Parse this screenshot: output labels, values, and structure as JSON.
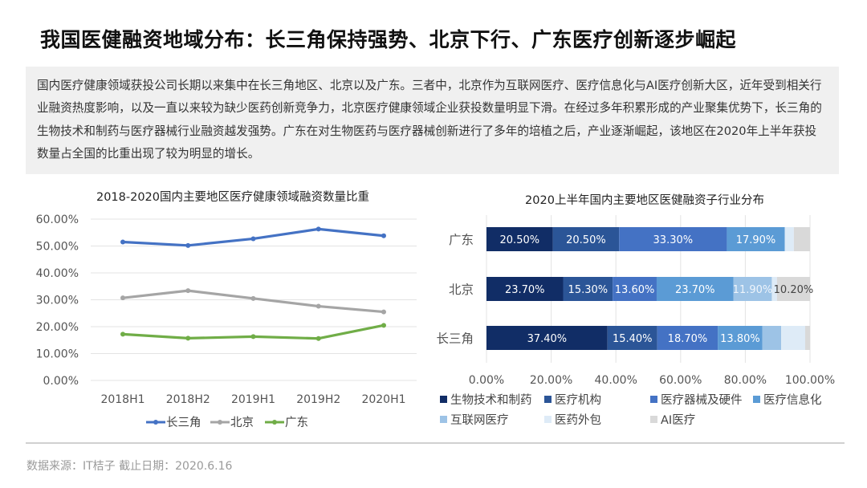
{
  "header": {
    "title": "我国医健融资地域分布：长三角保持强势、北京下行、广东医疗创新逐步崛起"
  },
  "summary": "国内医疗健康领域获投公司长期以来集中在长三角地区、北京以及广东。三者中，北京作为互联网医疗、医疗信息化与AI医疗创新大区，近年受到相关行业融资热度影响，以及一直以来较为缺少医药创新竞争力，北京医疗健康领域企业获投数量明显下滑。在经过多年积累形成的产业聚集优势下，长三角的生物技术和制药与医疗器械行业融资越发强势。广东在对生物医药与医疗器械创新进行了多年的培植之后，产业逐渐崛起，该地区在2020年上半年获投数量占全国的比重出现了较为明显的增长。",
  "footer": {
    "source": "数据来源：IT桔子  截止日期：2020.6.16"
  },
  "chart_data": [
    {
      "type": "line",
      "title": "2018-2020国内主要地区医疗健康领域融资数量比重",
      "categories": [
        "2018H1",
        "2018H2",
        "2019H1",
        "2019H2",
        "2020H1"
      ],
      "ylim": [
        0,
        60
      ],
      "yticks": [
        "0.00%",
        "10.00%",
        "20.00%",
        "30.00%",
        "40.00%",
        "50.00%",
        "60.00%"
      ],
      "grid": true,
      "legend": "bottom",
      "series": [
        {
          "name": "长三角",
          "color": "#4472c4",
          "values": [
            51.5,
            50.2,
            52.7,
            56.3,
            53.8
          ]
        },
        {
          "name": "北京",
          "color": "#a5a5a5",
          "values": [
            30.7,
            33.4,
            30.5,
            27.6,
            25.5
          ]
        },
        {
          "name": "广东",
          "color": "#70ad47",
          "values": [
            17.2,
            15.7,
            16.3,
            15.6,
            20.5
          ]
        }
      ]
    },
    {
      "type": "bar",
      "orientation": "horizontal-stacked",
      "title": "2020上半年国内主要地区医健融资子行业分布",
      "categories": [
        "广东",
        "北京",
        "长三角"
      ],
      "xlim": [
        0,
        100
      ],
      "xticks": [
        "0.00%",
        "20.00%",
        "40.00%",
        "60.00%",
        "80.00%",
        "100.00%"
      ],
      "legend": "bottom",
      "series": [
        {
          "name": "生物技术和制药",
          "color": "#112d66",
          "values": [
            20.5,
            23.7,
            37.4
          ],
          "labels": [
            "20.50%",
            "23.70%",
            "37.40%"
          ]
        },
        {
          "name": "医疗机构",
          "color": "#2b5597",
          "values": [
            20.5,
            15.3,
            15.4
          ],
          "labels": [
            "20.50%",
            "15.30%",
            "15.40%"
          ]
        },
        {
          "name": "医疗器械及硬件",
          "color": "#4472c4",
          "values": [
            33.3,
            13.6,
            18.7
          ],
          "labels": [
            "33.30%",
            "13.60%",
            "18.70%"
          ]
        },
        {
          "name": "医疗信息化",
          "color": "#5b9bd5",
          "values": [
            17.9,
            23.7,
            13.8
          ],
          "labels": [
            "17.90%",
            "23.70%",
            "13.80%"
          ]
        },
        {
          "name": "互联网医疗",
          "color": "#9dc3e6",
          "values": [
            0,
            11.9,
            5.8
          ],
          "labels": [
            "",
            "11.90%",
            ""
          ]
        },
        {
          "name": "医药外包",
          "color": "#deebf7",
          "values": [
            2.8,
            1.6,
            7.4
          ],
          "labels": [
            "",
            "",
            ""
          ]
        },
        {
          "name": "AI医疗",
          "color": "#d9d9d9",
          "values": [
            5.0,
            10.2,
            1.5
          ],
          "labels": [
            "",
            "10.20%",
            ""
          ]
        }
      ]
    }
  ]
}
